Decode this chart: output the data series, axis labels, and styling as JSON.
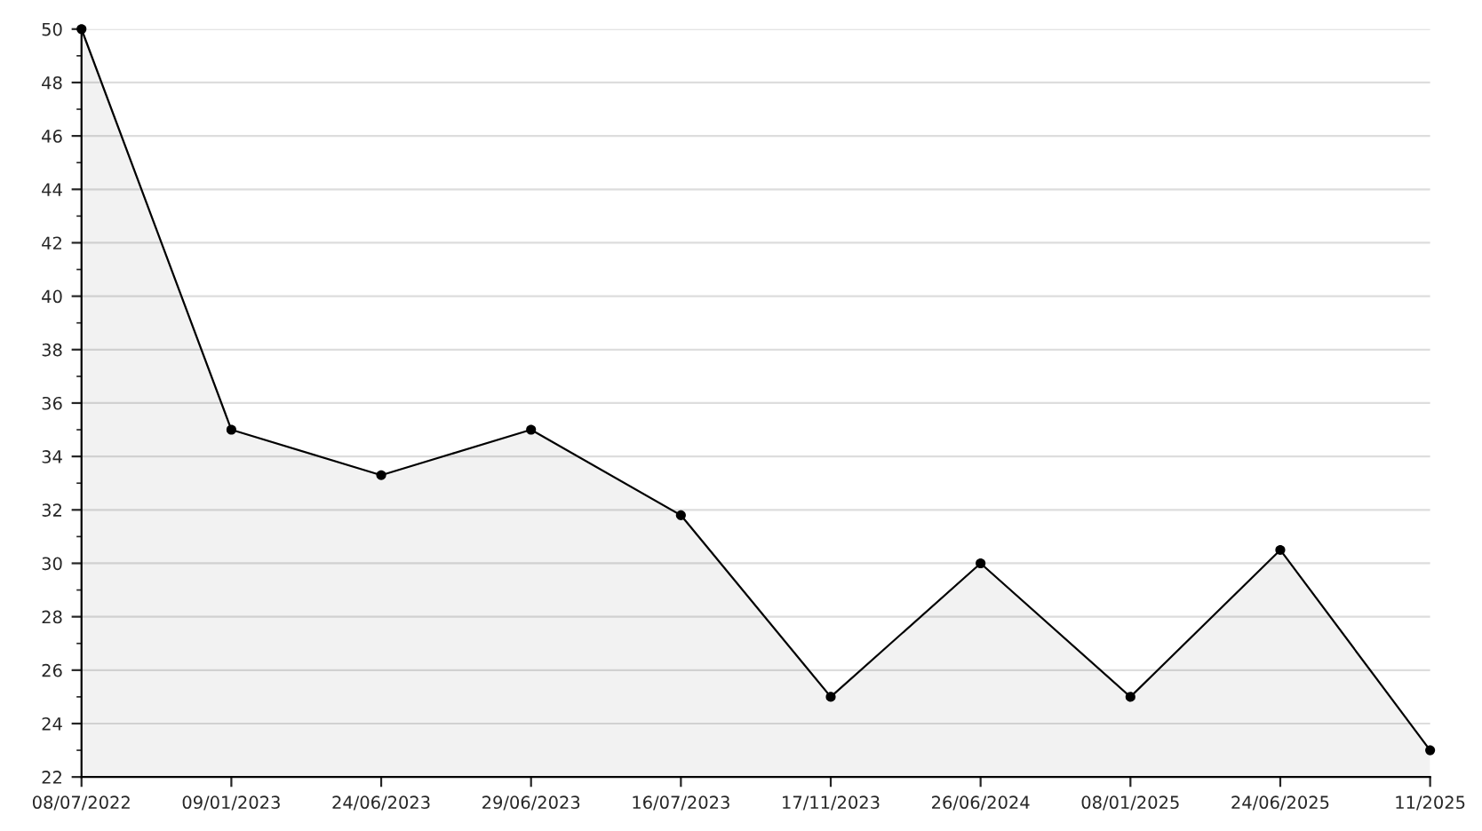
{
  "chart_data": {
    "type": "area",
    "categories": [
      "08/07/2022",
      "09/01/2023",
      "24/06/2023",
      "29/06/2023",
      "16/07/2023",
      "17/11/2023",
      "26/06/2024",
      "08/01/2025",
      "24/06/2025",
      "11/2025"
    ],
    "series": [
      {
        "color": "#000000",
        "values": [
          50,
          35,
          33.3,
          35,
          31.8,
          25,
          30,
          25,
          30.5,
          23
        ]
      }
    ],
    "ylim": [
      22,
      50
    ],
    "yticks": [
      22,
      24,
      26,
      28,
      30,
      32,
      34,
      36,
      38,
      40,
      42,
      44,
      46,
      48,
      50
    ],
    "grid": "y",
    "marker": "circle",
    "line_style": "solid"
  }
}
